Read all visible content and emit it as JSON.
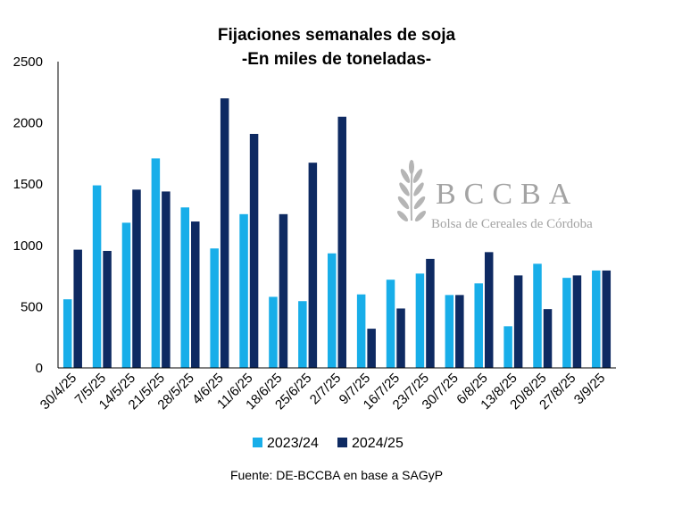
{
  "chart_data": {
    "type": "bar",
    "title": "Fijaciones semanales de soja",
    "subtitle": "-En miles de toneladas-",
    "categories": [
      "30/4/25",
      "7/5/25",
      "14/5/25",
      "21/5/25",
      "28/5/25",
      "4/6/25",
      "11/6/25",
      "18/6/25",
      "25/6/25",
      "2/7/25",
      "9/7/25",
      "16/7/25",
      "23/7/25",
      "30/7/25",
      "6/8/25",
      "13/8/25",
      "20/8/25",
      "27/8/25",
      "3/9/25"
    ],
    "series": [
      {
        "name": "2023/24",
        "color": "#18aee9",
        "values": [
          560,
          1490,
          1185,
          1710,
          1310,
          975,
          1255,
          580,
          545,
          935,
          600,
          720,
          770,
          595,
          690,
          340,
          850,
          735,
          795
        ]
      },
      {
        "name": "2024/25",
        "color": "#0e2a62",
        "values": [
          965,
          955,
          1455,
          1440,
          1195,
          2200,
          1910,
          1255,
          1675,
          2050,
          320,
          485,
          890,
          595,
          945,
          755,
          480,
          755,
          795
        ]
      }
    ],
    "yticks": [
      0,
      500,
      1000,
      1500,
      2000,
      2500
    ],
    "ylim": [
      0,
      2500
    ],
    "legend_position": "bottom",
    "grid": false,
    "source_note": "Fuente: DE-BCCBA en base a SAGyP"
  },
  "watermark": {
    "logo_text": "BCCBA",
    "logo_subtext": "Bolsa de Cereales de Córdoba",
    "icon": "wheat-icon"
  }
}
